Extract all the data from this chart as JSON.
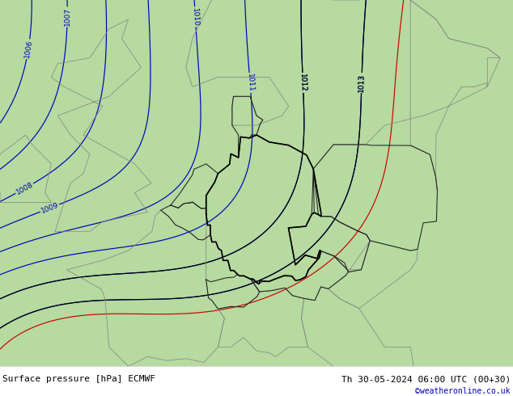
{
  "title_left": "Surface pressure [hPa] ECMWF",
  "title_right": "Th 30-05-2024 06:00 UTC (00+30)",
  "credit": "©weatheronline.co.uk",
  "bg_green": [
    0.714,
    0.855,
    0.627
  ],
  "bg_gray": [
    0.8,
    0.8,
    0.8
  ],
  "bg_white": [
    0.92,
    0.92,
    0.92
  ],
  "contour_color": "#0000bb",
  "black_contour_color": "#000000",
  "red_contour_color": "#cc0000",
  "footer_bg": "#ffffff",
  "label_fontsize": 6.5,
  "footer_fontsize": 8,
  "lon_min": -10,
  "lon_max": 30,
  "lat_min": 43,
  "lat_max": 62
}
